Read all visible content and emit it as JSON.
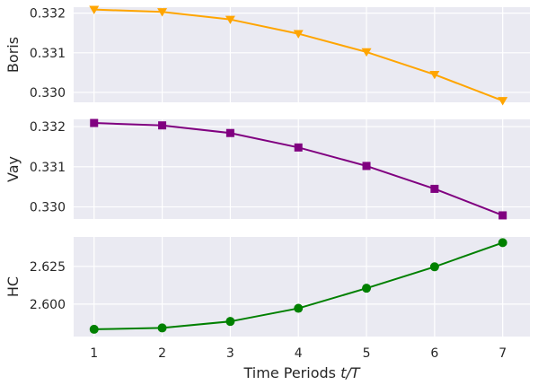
{
  "chart_data": {
    "type": "line",
    "x": [
      1,
      2,
      3,
      4,
      5,
      6,
      7
    ],
    "xlabel": "Time Periods t/T",
    "xlabel_main": "Time Periods",
    "xlabel_math": "t/T",
    "xticks": [
      1,
      2,
      3,
      4,
      5,
      6,
      7
    ],
    "xlim": [
      0.7,
      7.4
    ],
    "grid": true,
    "panels": [
      {
        "ylabel": "Boris",
        "color": "#FFA500",
        "marker": "triangle-down",
        "ylim": [
          0.32975,
          0.33215
        ],
        "yticks": [
          0.33,
          0.331,
          0.332
        ],
        "ytick_labels": [
          "0.330",
          "0.331",
          "0.332"
        ],
        "values": [
          0.33209,
          0.33203,
          0.33184,
          0.33148,
          0.33102,
          0.33045,
          0.32979
        ]
      },
      {
        "ylabel": "Vay",
        "color": "#800080",
        "marker": "square",
        "ylim": [
          0.3297,
          0.33218
        ],
        "yticks": [
          0.33,
          0.331,
          0.332
        ],
        "ytick_labels": [
          "0.330",
          "0.331",
          "0.332"
        ],
        "values": [
          0.33209,
          0.33203,
          0.33184,
          0.33148,
          0.33102,
          0.33045,
          0.32979
        ]
      },
      {
        "ylabel": "HC",
        "color": "#008000",
        "marker": "circle",
        "ylim": [
          2.5785,
          2.6445
        ],
        "yticks": [
          2.6,
          2.625
        ],
        "ytick_labels": [
          "2.600",
          "2.625"
        ],
        "values": [
          2.5833,
          2.5842,
          2.5885,
          2.5972,
          2.6105,
          2.6247,
          2.6407
        ]
      }
    ]
  }
}
